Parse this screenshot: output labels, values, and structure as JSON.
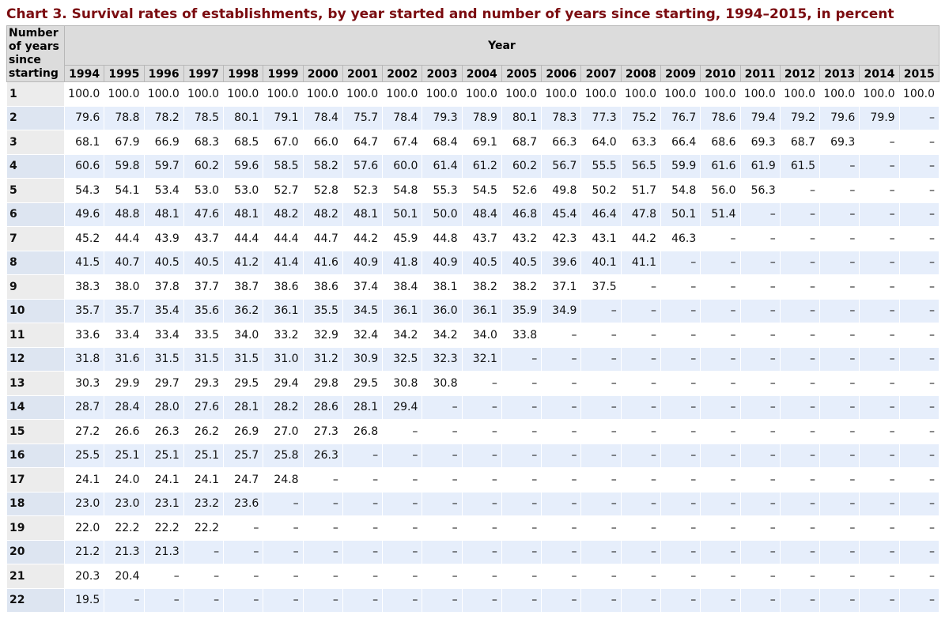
{
  "title": "Chart 3. Survival rates of establishments, by year started and number of years since starting, 1994–2015, in percent",
  "table": {
    "row_header": "Number of years since starting",
    "column_group": "Year",
    "years": [
      "1994",
      "1995",
      "1996",
      "1997",
      "1998",
      "1999",
      "2000",
      "2001",
      "2002",
      "2003",
      "2004",
      "2005",
      "2006",
      "2007",
      "2008",
      "2009",
      "2010",
      "2011",
      "2012",
      "2013",
      "2014",
      "2015"
    ],
    "rows": [
      {
        "label": "1",
        "cells": [
          "100.0",
          "100.0",
          "100.0",
          "100.0",
          "100.0",
          "100.0",
          "100.0",
          "100.0",
          "100.0",
          "100.0",
          "100.0",
          "100.0",
          "100.0",
          "100.0",
          "100.0",
          "100.0",
          "100.0",
          "100.0",
          "100.0",
          "100.0",
          "100.0",
          "100.0"
        ]
      },
      {
        "label": "2",
        "cells": [
          "79.6",
          "78.8",
          "78.2",
          "78.5",
          "80.1",
          "79.1",
          "78.4",
          "75.7",
          "78.4",
          "79.3",
          "78.9",
          "80.1",
          "78.3",
          "77.3",
          "75.2",
          "76.7",
          "78.6",
          "79.4",
          "79.2",
          "79.6",
          "79.9",
          "–"
        ]
      },
      {
        "label": "3",
        "cells": [
          "68.1",
          "67.9",
          "66.9",
          "68.3",
          "68.5",
          "67.0",
          "66.0",
          "64.7",
          "67.4",
          "68.4",
          "69.1",
          "68.7",
          "66.3",
          "64.0",
          "63.3",
          "66.4",
          "68.6",
          "69.3",
          "68.7",
          "69.3",
          "–",
          "–"
        ]
      },
      {
        "label": "4",
        "cells": [
          "60.6",
          "59.8",
          "59.7",
          "60.2",
          "59.6",
          "58.5",
          "58.2",
          "57.6",
          "60.0",
          "61.4",
          "61.2",
          "60.2",
          "56.7",
          "55.5",
          "56.5",
          "59.9",
          "61.6",
          "61.9",
          "61.5",
          "–",
          "–",
          "–"
        ]
      },
      {
        "label": "5",
        "cells": [
          "54.3",
          "54.1",
          "53.4",
          "53.0",
          "53.0",
          "52.7",
          "52.8",
          "52.3",
          "54.8",
          "55.3",
          "54.5",
          "52.6",
          "49.8",
          "50.2",
          "51.7",
          "54.8",
          "56.0",
          "56.3",
          "–",
          "–",
          "–",
          "–"
        ]
      },
      {
        "label": "6",
        "cells": [
          "49.6",
          "48.8",
          "48.1",
          "47.6",
          "48.1",
          "48.2",
          "48.2",
          "48.1",
          "50.1",
          "50.0",
          "48.4",
          "46.8",
          "45.4",
          "46.4",
          "47.8",
          "50.1",
          "51.4",
          "–",
          "–",
          "–",
          "–",
          "–"
        ]
      },
      {
        "label": "7",
        "cells": [
          "45.2",
          "44.4",
          "43.9",
          "43.7",
          "44.4",
          "44.4",
          "44.7",
          "44.2",
          "45.9",
          "44.8",
          "43.7",
          "43.2",
          "42.3",
          "43.1",
          "44.2",
          "46.3",
          "–",
          "–",
          "–",
          "–",
          "–",
          "–"
        ]
      },
      {
        "label": "8",
        "cells": [
          "41.5",
          "40.7",
          "40.5",
          "40.5",
          "41.2",
          "41.4",
          "41.6",
          "40.9",
          "41.8",
          "40.9",
          "40.5",
          "40.5",
          "39.6",
          "40.1",
          "41.1",
          "–",
          "–",
          "–",
          "–",
          "–",
          "–",
          "–"
        ]
      },
      {
        "label": "9",
        "cells": [
          "38.3",
          "38.0",
          "37.8",
          "37.7",
          "38.7",
          "38.6",
          "38.6",
          "37.4",
          "38.4",
          "38.1",
          "38.2",
          "38.2",
          "37.1",
          "37.5",
          "–",
          "–",
          "–",
          "–",
          "–",
          "–",
          "–",
          "–"
        ]
      },
      {
        "label": "10",
        "cells": [
          "35.7",
          "35.7",
          "35.4",
          "35.6",
          "36.2",
          "36.1",
          "35.5",
          "34.5",
          "36.1",
          "36.0",
          "36.1",
          "35.9",
          "34.9",
          "–",
          "–",
          "–",
          "–",
          "–",
          "–",
          "–",
          "–",
          "–"
        ]
      },
      {
        "label": "11",
        "cells": [
          "33.6",
          "33.4",
          "33.4",
          "33.5",
          "34.0",
          "33.2",
          "32.9",
          "32.4",
          "34.2",
          "34.2",
          "34.0",
          "33.8",
          "–",
          "–",
          "–",
          "–",
          "–",
          "–",
          "–",
          "–",
          "–",
          "–"
        ]
      },
      {
        "label": "12",
        "cells": [
          "31.8",
          "31.6",
          "31.5",
          "31.5",
          "31.5",
          "31.0",
          "31.2",
          "30.9",
          "32.5",
          "32.3",
          "32.1",
          "–",
          "–",
          "–",
          "–",
          "–",
          "–",
          "–",
          "–",
          "–",
          "–",
          "–"
        ]
      },
      {
        "label": "13",
        "cells": [
          "30.3",
          "29.9",
          "29.7",
          "29.3",
          "29.5",
          "29.4",
          "29.8",
          "29.5",
          "30.8",
          "30.8",
          "–",
          "–",
          "–",
          "–",
          "–",
          "–",
          "–",
          "–",
          "–",
          "–",
          "–",
          "–"
        ]
      },
      {
        "label": "14",
        "cells": [
          "28.7",
          "28.4",
          "28.0",
          "27.6",
          "28.1",
          "28.2",
          "28.6",
          "28.1",
          "29.4",
          "–",
          "–",
          "–",
          "–",
          "–",
          "–",
          "–",
          "–",
          "–",
          "–",
          "–",
          "–",
          "–"
        ]
      },
      {
        "label": "15",
        "cells": [
          "27.2",
          "26.6",
          "26.3",
          "26.2",
          "26.9",
          "27.0",
          "27.3",
          "26.8",
          "–",
          "–",
          "–",
          "–",
          "–",
          "–",
          "–",
          "–",
          "–",
          "–",
          "–",
          "–",
          "–",
          "–"
        ]
      },
      {
        "label": "16",
        "cells": [
          "25.5",
          "25.1",
          "25.1",
          "25.1",
          "25.7",
          "25.8",
          "26.3",
          "–",
          "–",
          "–",
          "–",
          "–",
          "–",
          "–",
          "–",
          "–",
          "–",
          "–",
          "–",
          "–",
          "–",
          "–"
        ]
      },
      {
        "label": "17",
        "cells": [
          "24.1",
          "24.0",
          "24.1",
          "24.1",
          "24.7",
          "24.8",
          "–",
          "–",
          "–",
          "–",
          "–",
          "–",
          "–",
          "–",
          "–",
          "–",
          "–",
          "–",
          "–",
          "–",
          "–",
          "–"
        ]
      },
      {
        "label": "18",
        "cells": [
          "23.0",
          "23.0",
          "23.1",
          "23.2",
          "23.6",
          "–",
          "–",
          "–",
          "–",
          "–",
          "–",
          "–",
          "–",
          "–",
          "–",
          "–",
          "–",
          "–",
          "–",
          "–",
          "–",
          "–"
        ]
      },
      {
        "label": "19",
        "cells": [
          "22.0",
          "22.2",
          "22.2",
          "22.2",
          "–",
          "–",
          "–",
          "–",
          "–",
          "–",
          "–",
          "–",
          "–",
          "–",
          "–",
          "–",
          "–",
          "–",
          "–",
          "–",
          "–",
          "–"
        ]
      },
      {
        "label": "20",
        "cells": [
          "21.2",
          "21.3",
          "21.3",
          "–",
          "–",
          "–",
          "–",
          "–",
          "–",
          "–",
          "–",
          "–",
          "–",
          "–",
          "–",
          "–",
          "–",
          "–",
          "–",
          "–",
          "–",
          "–"
        ]
      },
      {
        "label": "21",
        "cells": [
          "20.3",
          "20.4",
          "–",
          "–",
          "–",
          "–",
          "–",
          "–",
          "–",
          "–",
          "–",
          "–",
          "–",
          "–",
          "–",
          "–",
          "–",
          "–",
          "–",
          "–",
          "–",
          "–"
        ]
      },
      {
        "label": "22",
        "cells": [
          "19.5",
          "–",
          "–",
          "–",
          "–",
          "–",
          "–",
          "–",
          "–",
          "–",
          "–",
          "–",
          "–",
          "–",
          "–",
          "–",
          "–",
          "–",
          "–",
          "–",
          "–",
          "–"
        ]
      }
    ]
  }
}
